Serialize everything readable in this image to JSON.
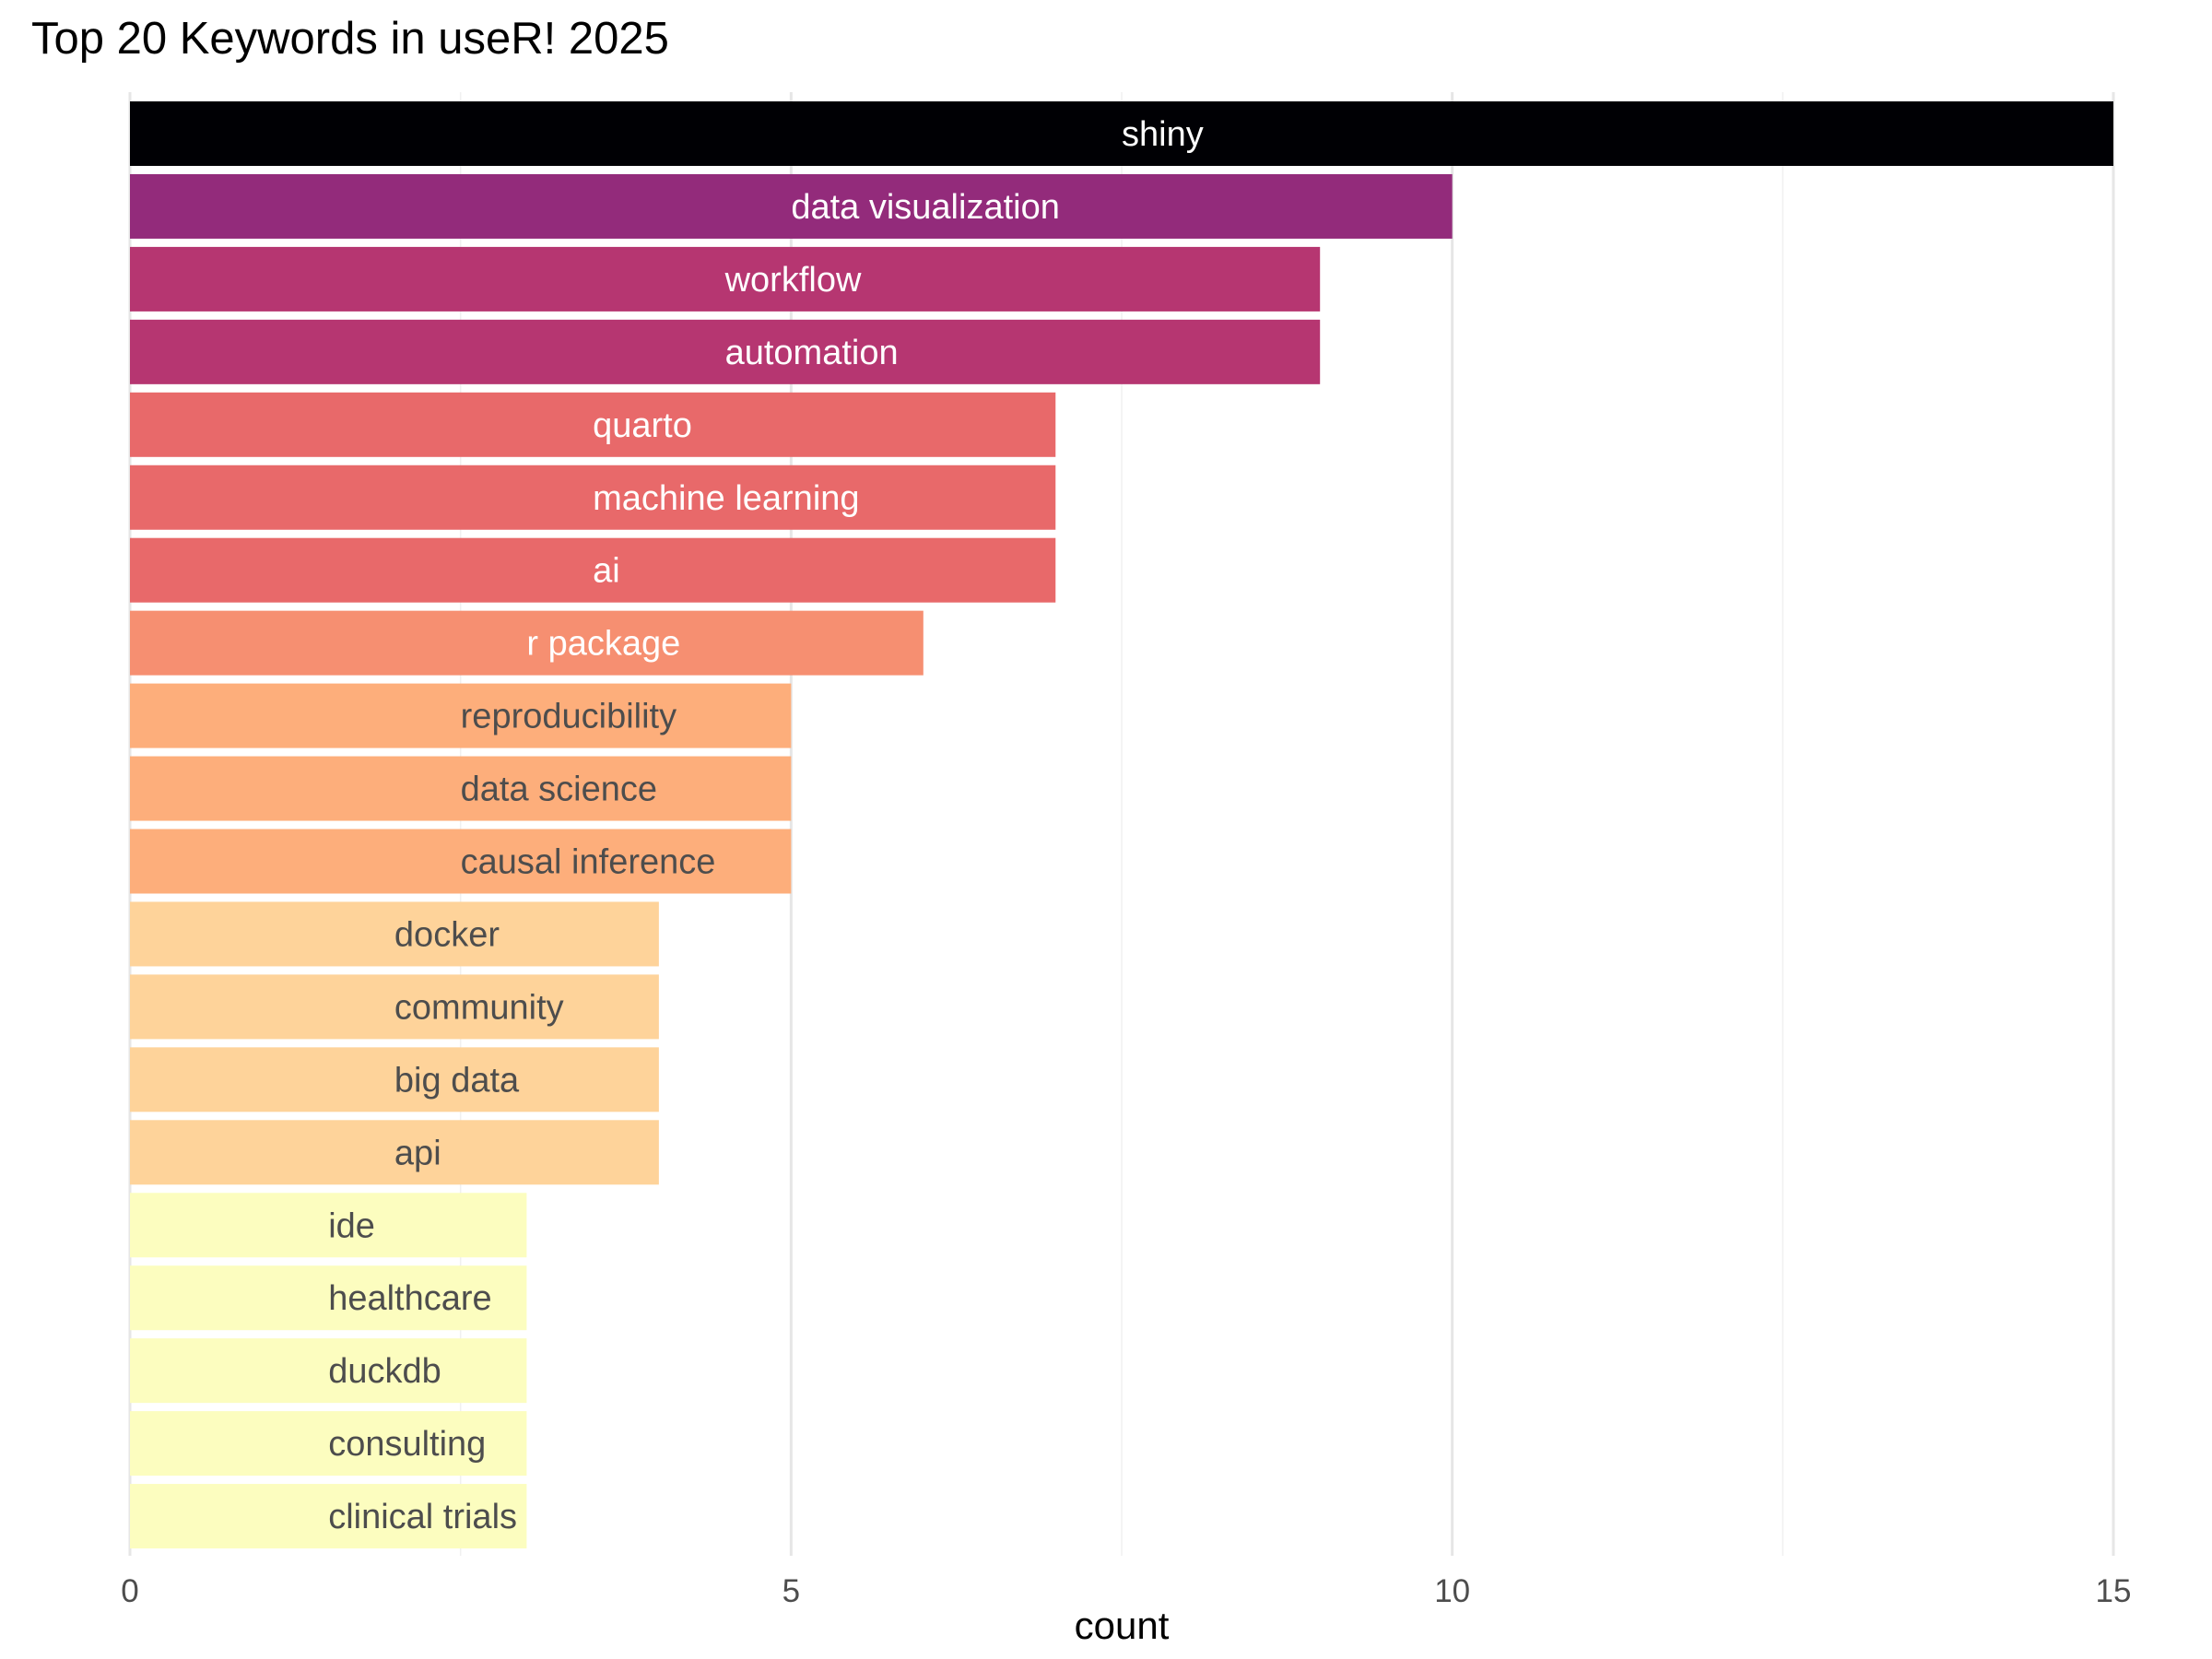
{
  "chart_data": {
    "type": "bar",
    "orientation": "horizontal",
    "title": "Top 20 Keywords in useR! 2025",
    "xlabel": "count",
    "ylabel": "",
    "xlim": [
      0,
      15
    ],
    "xticks": [
      0,
      5,
      10,
      15
    ],
    "xtick_labels": [
      "0",
      "5",
      "10",
      "15"
    ],
    "grid": true,
    "legend": "none",
    "categories": [
      "shiny",
      "data visualization",
      "workflow",
      "automation",
      "quarto",
      "machine learning",
      "ai",
      "r package",
      "reproducibility",
      "data science",
      "causal inference",
      "docker",
      "community",
      "big data",
      "api",
      "ide",
      "healthcare",
      "duckdb",
      "consulting",
      "clinical trials"
    ],
    "values": [
      15,
      10,
      9,
      9,
      7,
      7,
      7,
      6,
      5,
      5,
      5,
      4,
      4,
      4,
      4,
      3,
      3,
      3,
      3,
      3
    ],
    "colors": {
      "15": "#000004",
      "10": "#932B7B",
      "9": "#B63671",
      "7": "#E8696A",
      "6": "#F68F71",
      "5": "#FDAE7B",
      "4": "#FED39A",
      "3": "#FCFDBF"
    },
    "label_colors": {
      "dark_bar": "#ffffff",
      "light_bar": "#4d4d4d"
    }
  }
}
